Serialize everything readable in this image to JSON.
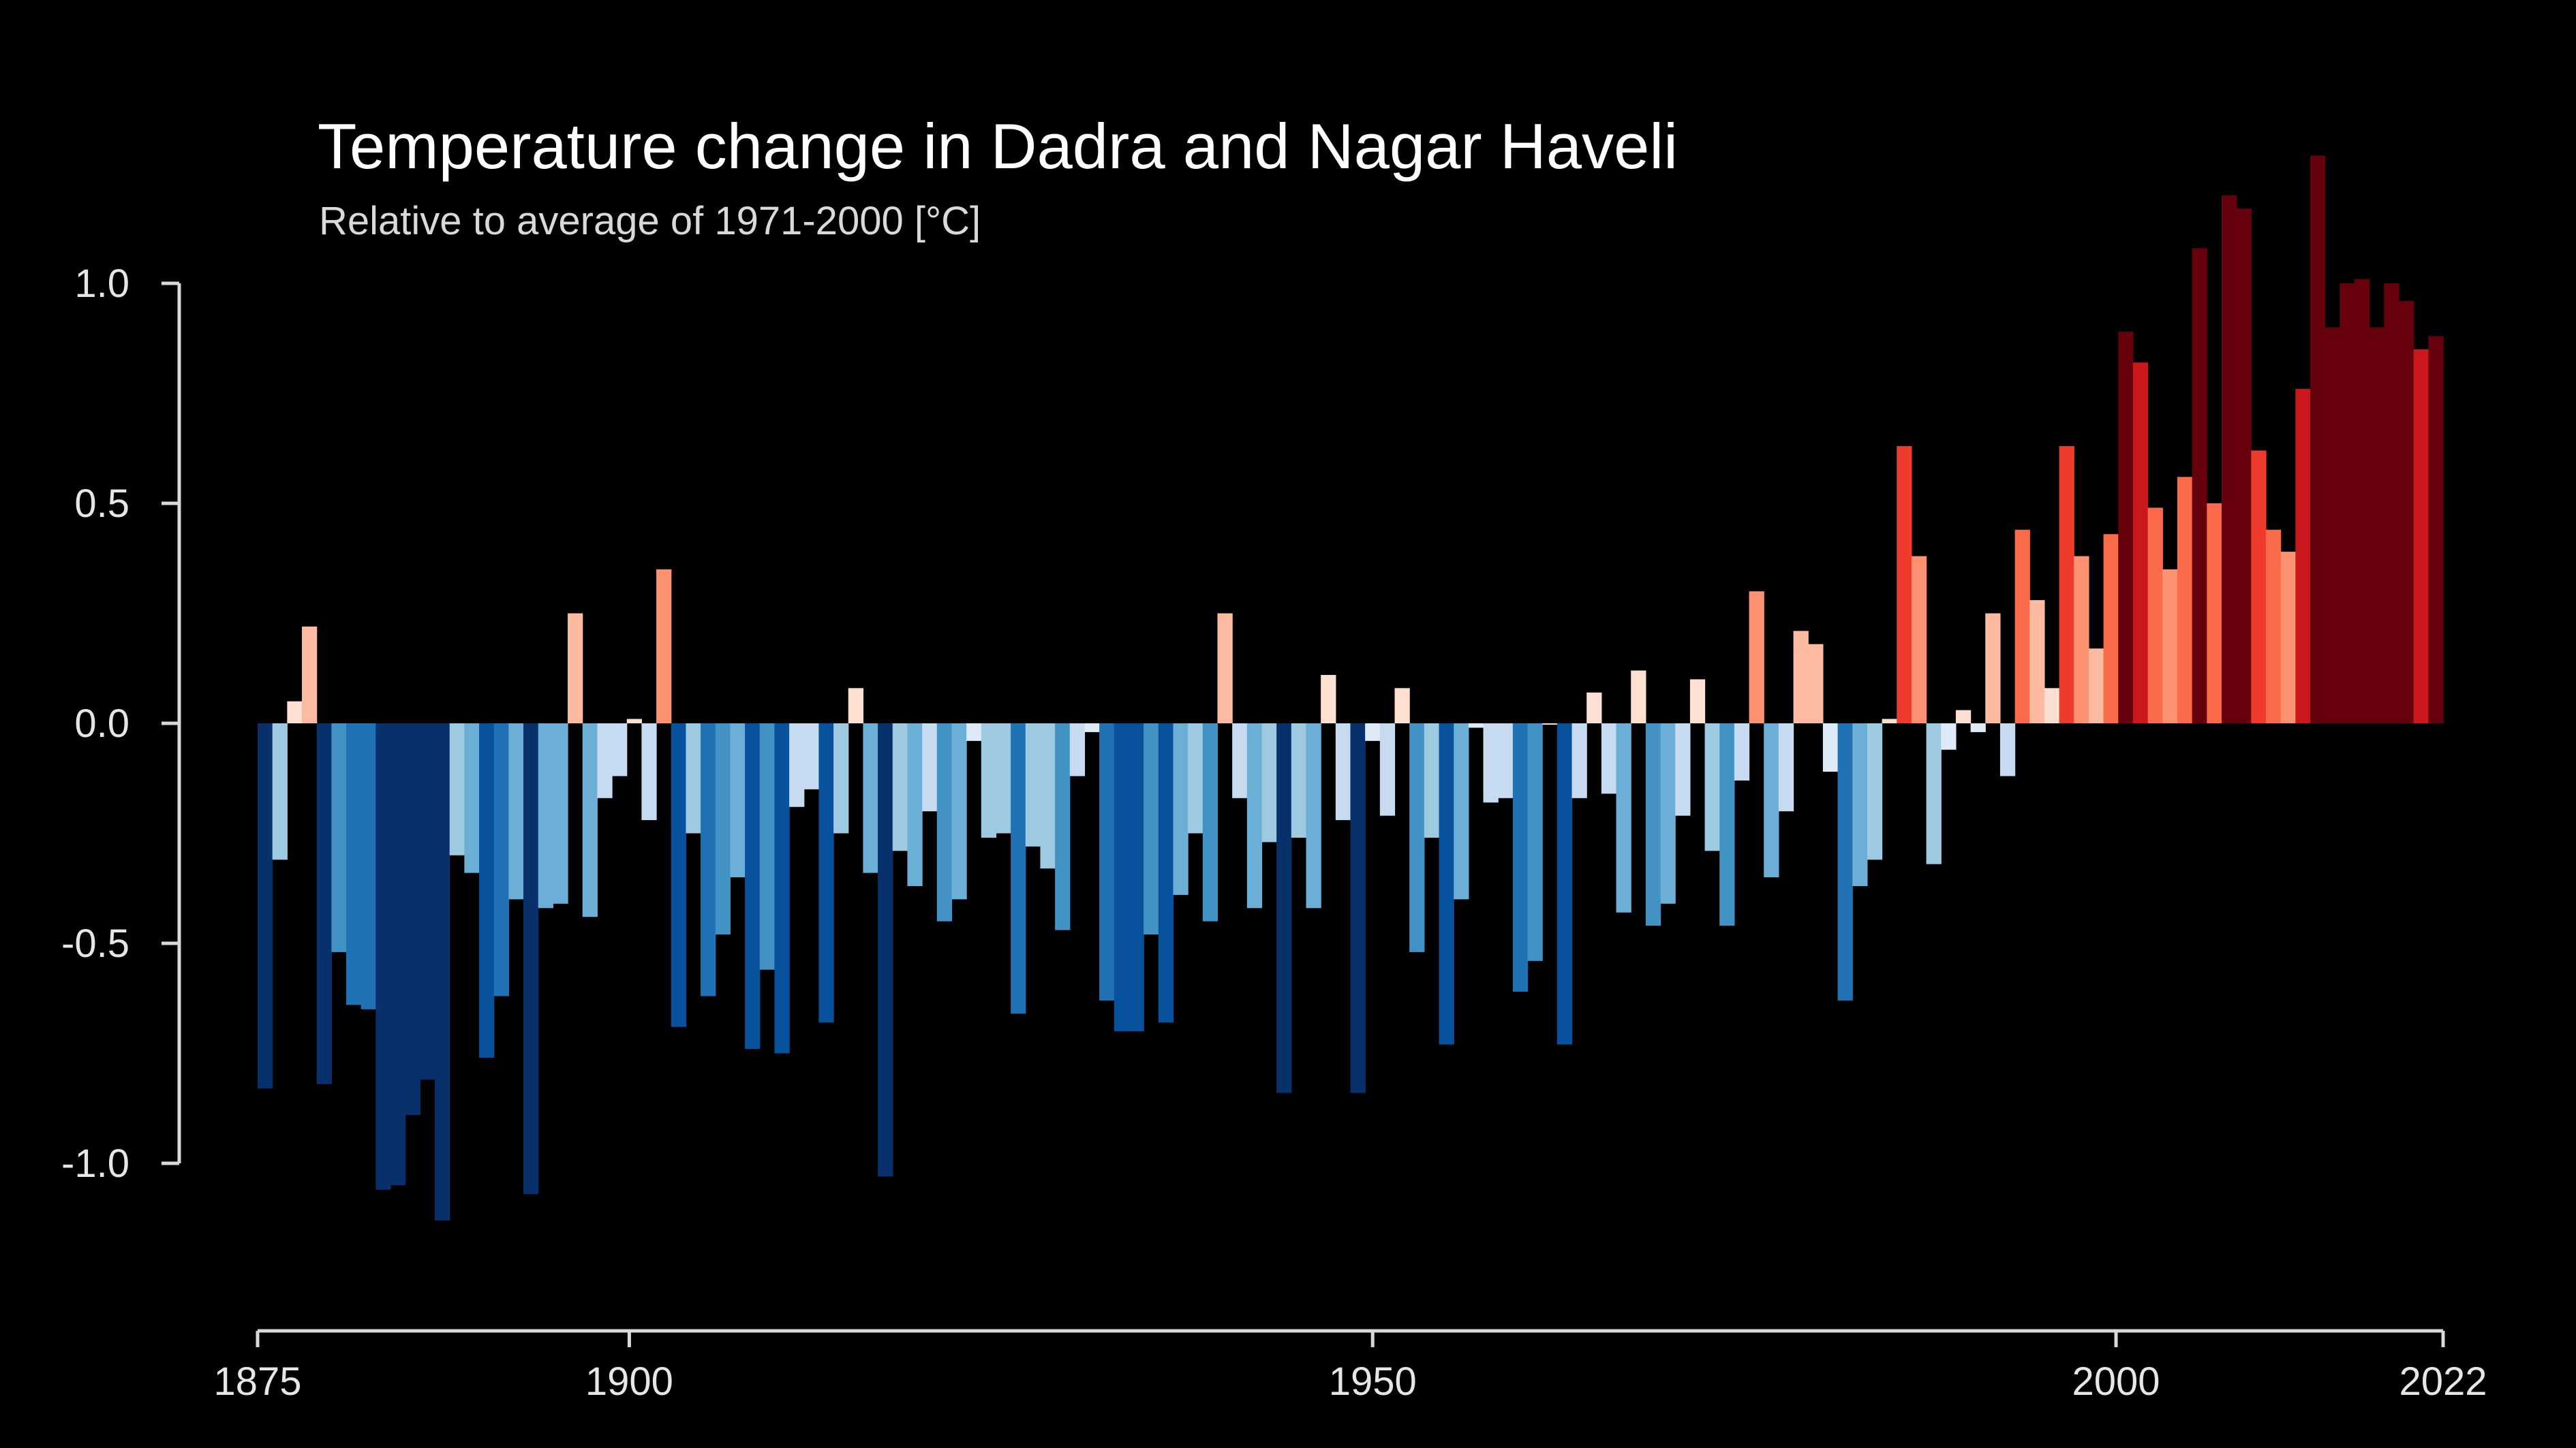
{
  "colors": {
    "background": "#000000",
    "text": "#ffffff",
    "axis": "#d9d9d9",
    "warm_palette": [
      "#fee0d2",
      "#fcbba1",
      "#fc9272",
      "#fb6a4a",
      "#ef3b2c",
      "#cb181d",
      "#67000d"
    ],
    "cool_palette": [
      "#deebf7",
      "#c6dbef",
      "#9ecae1",
      "#6baed6",
      "#4292c6",
      "#2171b5",
      "#08519c",
      "#08306b"
    ]
  },
  "chart_data": {
    "type": "bar",
    "title": "Temperature change in Dadra and Nagar Haveli",
    "subtitle": "Relative to average of 1971-2000  [°C]",
    "xlabel": "",
    "ylabel": "",
    "x_start": 1875,
    "x_end": 2022,
    "xlim": [
      1875,
      2022
    ],
    "ylim": [
      -1.35,
      1.35
    ],
    "x_ticks": [
      1875,
      1900,
      1950,
      2000,
      2022
    ],
    "x_tick_labels": [
      "1875",
      "1900",
      "1950",
      "2000",
      "2022"
    ],
    "y_ticks": [
      1.0,
      0.5,
      0.0,
      -0.5,
      -1.0
    ],
    "y_tick_labels": [
      "1.0",
      "0.5",
      "0.0",
      "-0.5",
      "-1.0"
    ],
    "grid": false,
    "values": [
      -0.83,
      -0.31,
      0.05,
      0.22,
      -0.82,
      -0.52,
      -0.64,
      -0.65,
      -1.06,
      -1.05,
      -0.89,
      -0.81,
      -1.13,
      -0.3,
      -0.34,
      -0.76,
      -0.62,
      -0.4,
      -1.07,
      -0.42,
      -0.41,
      0.25,
      -0.44,
      -0.17,
      -0.12,
      0.01,
      -0.22,
      0.35,
      -0.69,
      -0.25,
      -0.62,
      -0.48,
      -0.35,
      -0.74,
      -0.56,
      -0.75,
      -0.19,
      -0.15,
      -0.68,
      -0.25,
      0.08,
      -0.34,
      -1.03,
      -0.29,
      -0.37,
      -0.2,
      -0.45,
      -0.4,
      -0.04,
      -0.26,
      -0.25,
      -0.66,
      -0.28,
      -0.33,
      -0.47,
      -0.12,
      -0.02,
      -0.63,
      -0.7,
      -0.7,
      -0.48,
      -0.68,
      -0.39,
      -0.25,
      -0.45,
      0.25,
      -0.17,
      -0.42,
      -0.27,
      -0.84,
      -0.26,
      -0.42,
      0.11,
      -0.22,
      -0.84,
      -0.04,
      -0.21,
      0.08,
      -0.52,
      -0.26,
      -0.73,
      -0.4,
      -0.01,
      -0.18,
      -0.17,
      -0.61,
      -0.54,
      0.0,
      -0.73,
      -0.17,
      0.07,
      -0.16,
      -0.43,
      0.12,
      -0.46,
      -0.41,
      -0.21,
      0.1,
      -0.29,
      -0.46,
      -0.13,
      0.3,
      -0.35,
      -0.2,
      0.21,
      0.18,
      -0.11,
      -0.63,
      -0.37,
      -0.31,
      0.01,
      0.63,
      0.38,
      -0.32,
      -0.06,
      0.03,
      -0.02,
      0.25,
      -0.12,
      0.44,
      0.28,
      0.08,
      0.63,
      0.38,
      0.17,
      0.43,
      0.89,
      0.82,
      0.49,
      0.35,
      0.56,
      1.08,
      0.5,
      1.2,
      1.17,
      0.62,
      0.44,
      0.39,
      0.76,
      1.29,
      0.9,
      1.0,
      1.01,
      0.9,
      1.0,
      0.96,
      0.85,
      0.88
    ]
  }
}
